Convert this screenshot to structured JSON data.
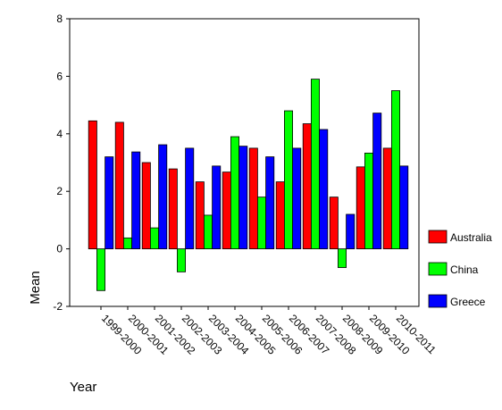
{
  "chart_data": {
    "type": "bar",
    "title": "",
    "xlabel": "Year",
    "ylabel": "Mean",
    "ylim": [
      -2,
      8
    ],
    "yticks": [
      -2,
      0,
      2,
      4,
      6,
      8
    ],
    "ytick_labels": [
      "-2",
      "0",
      "2",
      "4",
      "6",
      "8"
    ],
    "grid": false,
    "legend_position": "right",
    "categories": [
      "1999-2000",
      "2000-2001",
      "2001-2002",
      "2002-2003",
      "2003-2004",
      "2004-2005",
      "2005-2006",
      "2006-2007",
      "2007-2008",
      "2008-2009",
      "2009-2010",
      "2010-2011"
    ],
    "series": [
      {
        "name": "Australia",
        "color": "#ff0000",
        "values": [
          4.45,
          4.4,
          3.0,
          2.78,
          2.33,
          2.67,
          3.5,
          2.33,
          4.35,
          1.8,
          2.85,
          3.5
        ]
      },
      {
        "name": "China",
        "color": "#00ff00",
        "values": [
          -1.45,
          0.38,
          0.73,
          -0.8,
          1.17,
          3.9,
          1.8,
          4.8,
          5.9,
          -0.65,
          3.33,
          5.5
        ]
      },
      {
        "name": "Greece",
        "color": "#0000ff",
        "values": [
          3.2,
          3.37,
          3.62,
          3.5,
          2.88,
          3.57,
          3.2,
          3.5,
          4.15,
          1.2,
          4.72,
          2.88
        ]
      }
    ]
  }
}
